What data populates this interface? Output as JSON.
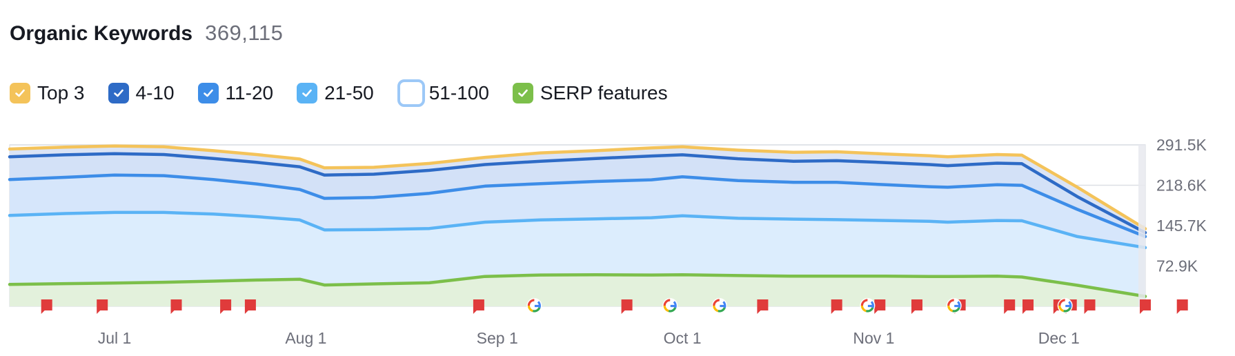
{
  "header": {
    "title": "Organic Keywords",
    "total": "369,115"
  },
  "legend": [
    {
      "label": "Top 3",
      "color": "#f4c35a",
      "checked": true
    },
    {
      "label": "4-10",
      "color": "#2e6bc6",
      "checked": true
    },
    {
      "label": "11-20",
      "color": "#3d8de8",
      "checked": true
    },
    {
      "label": "21-50",
      "color": "#5ab3f5",
      "checked": true
    },
    {
      "label": "51-100",
      "color": "#9cc8f7",
      "checked": false
    },
    {
      "label": "SERP features",
      "color": "#7cbf4a",
      "checked": true
    }
  ],
  "chart_data": {
    "type": "area",
    "x_start": "2024-06-14",
    "x_end": "2024-12-15",
    "x_tick_labels": [
      "Jul 1",
      "Aug 1",
      "Sep 1",
      "Oct 1",
      "Nov 1",
      "Dec 1"
    ],
    "x_tick_dates": [
      "2024-07-01",
      "2024-08-01",
      "2024-09-01",
      "2024-10-01",
      "2024-11-01",
      "2024-12-01"
    ],
    "y_tick_labels": [
      "72.9K",
      "145.7K",
      "218.6K",
      "291.5K"
    ],
    "y_tick_values": [
      72900,
      145700,
      218600,
      291500
    ],
    "ylim": [
      0,
      291500
    ],
    "y_axis_position": "right",
    "grid": true,
    "x": [
      "2024-06-14",
      "2024-06-23",
      "2024-07-01",
      "2024-07-09",
      "2024-07-17",
      "2024-07-24",
      "2024-07-31",
      "2024-08-04",
      "2024-08-12",
      "2024-08-21",
      "2024-08-30",
      "2024-09-08",
      "2024-09-17",
      "2024-09-26",
      "2024-10-01",
      "2024-10-10",
      "2024-10-19",
      "2024-10-26",
      "2024-11-03",
      "2024-11-10",
      "2024-11-13",
      "2024-11-21",
      "2024-11-25",
      "2024-12-04",
      "2024-12-15"
    ],
    "series": [
      {
        "name": "Top 3",
        "color": "#f4c35a",
        "values": [
          284000,
          287500,
          289500,
          288000,
          281000,
          274000,
          266000,
          250000,
          251000,
          258000,
          269000,
          277000,
          281000,
          286000,
          288000,
          282000,
          278000,
          279000,
          275000,
          272000,
          270000,
          274000,
          273000,
          215000,
          140000
        ]
      },
      {
        "name": "4-10",
        "color": "#2e6bc6",
        "values": [
          270000,
          273500,
          275500,
          274000,
          267000,
          260000,
          252000,
          237000,
          238500,
          245500,
          256000,
          262000,
          267000,
          271500,
          273500,
          266500,
          262000,
          263000,
          259500,
          256000,
          254000,
          258500,
          257500,
          198000,
          133000
        ]
      },
      {
        "name": "11-20",
        "color": "#3d8de8",
        "values": [
          229000,
          233000,
          237000,
          236000,
          229000,
          221000,
          211000,
          195000,
          196500,
          204000,
          217000,
          221500,
          225500,
          228500,
          234000,
          227000,
          224000,
          224000,
          219500,
          216000,
          215000,
          219500,
          218500,
          175000,
          126000
        ]
      },
      {
        "name": "21-50",
        "color": "#5ab3f5",
        "values": [
          164000,
          167500,
          169500,
          169500,
          166500,
          162000,
          156000,
          138000,
          138500,
          140500,
          152000,
          156000,
          158000,
          160000,
          163500,
          159000,
          157500,
          156500,
          155000,
          153500,
          152000,
          155000,
          154500,
          126000,
          106000
        ]
      },
      {
        "name": "SERP features",
        "color": "#7cbf4a",
        "values": [
          39500,
          41000,
          42000,
          43500,
          45500,
          47500,
          49000,
          38500,
          40500,
          42500,
          54000,
          56500,
          57000,
          56500,
          57000,
          55500,
          54500,
          54500,
          54500,
          54000,
          54000,
          54500,
          53000,
          38000,
          18000
        ]
      }
    ],
    "note_markers": [
      "2024-06-20",
      "2024-06-29",
      "2024-07-11",
      "2024-07-19",
      "2024-07-23",
      "2024-08-29",
      "2024-09-22",
      "2024-10-14",
      "2024-10-26",
      "2024-11-02",
      "2024-11-08",
      "2024-11-15",
      "2024-11-23",
      "2024-11-26",
      "2024-12-01",
      "2024-12-03",
      "2024-12-06",
      "2024-12-15",
      "2024-12-21"
    ],
    "google_update_markers": [
      "2024-09-07",
      "2024-09-29",
      "2024-10-07",
      "2024-10-31",
      "2024-11-14",
      "2024-12-02"
    ]
  }
}
